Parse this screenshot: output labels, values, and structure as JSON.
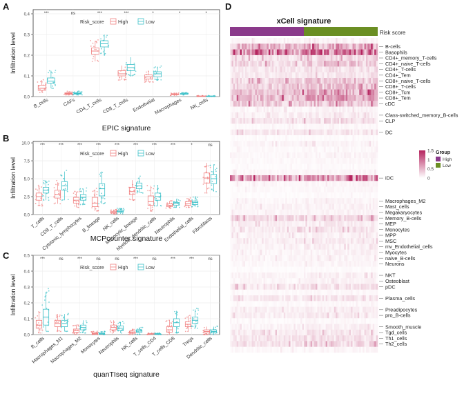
{
  "panels": {
    "a": "A",
    "b": "B",
    "c": "C",
    "d": "D"
  },
  "chart_data": [
    {
      "id": "epic",
      "type": "box",
      "title": "EPIC signature",
      "ylabel": "Infiltration level",
      "legend_title": "Risk_score",
      "legend": [
        "High",
        "Low"
      ],
      "series_colors": {
        "High": "#F08080",
        "Low": "#3CC0C8"
      },
      "ylim": [
        0,
        0.42
      ],
      "yticks": [
        "0.0",
        "0.1",
        "0.2",
        "0.3",
        "0.4"
      ],
      "ytick_values": [
        0,
        0.1,
        0.2,
        0.3,
        0.4
      ],
      "categories": [
        "B_cells",
        "CAFs",
        "CD4_T_cells",
        "CD8_T_cells",
        "Endothelial",
        "Macrophages",
        "NK_cells"
      ],
      "significance": [
        "***",
        "ns",
        "***",
        "***",
        "*",
        "*",
        "*"
      ],
      "boxes": {
        "High": [
          [
            0.02,
            0.03,
            0.04,
            0.055,
            0.08
          ],
          [
            0.008,
            0.012,
            0.015,
            0.018,
            0.025
          ],
          [
            0.17,
            0.205,
            0.22,
            0.235,
            0.27
          ],
          [
            0.08,
            0.1,
            0.11,
            0.125,
            0.15
          ],
          [
            0.07,
            0.085,
            0.095,
            0.105,
            0.125
          ],
          [
            0.006,
            0.009,
            0.011,
            0.013,
            0.018
          ],
          [
            0.0,
            0.001,
            0.002,
            0.003,
            0.005
          ]
        ],
        "Low": [
          [
            0.04,
            0.065,
            0.075,
            0.09,
            0.125
          ],
          [
            0.008,
            0.012,
            0.015,
            0.018,
            0.025
          ],
          [
            0.2,
            0.24,
            0.255,
            0.27,
            0.3
          ],
          [
            0.1,
            0.125,
            0.14,
            0.155,
            0.19
          ],
          [
            0.08,
            0.095,
            0.11,
            0.12,
            0.145
          ],
          [
            0.008,
            0.011,
            0.013,
            0.015,
            0.02
          ],
          [
            0.0,
            0.001,
            0.002,
            0.003,
            0.005
          ]
        ]
      }
    },
    {
      "id": "mcp",
      "type": "box",
      "title": "MCPcounter signature",
      "ylabel": "Infiltration level",
      "legend_title": "Risk_score",
      "legend": [
        "High",
        "Low"
      ],
      "series_colors": {
        "High": "#F08080",
        "Low": "#3CC0C8"
      },
      "ylim": [
        0,
        10.2
      ],
      "yticks": [
        "0.0",
        "2.5",
        "5.0",
        "7.5",
        "10.0"
      ],
      "ytick_values": [
        0,
        2.5,
        5,
        7.5,
        10
      ],
      "categories": [
        "T_cells",
        "CD8_T_cells",
        "Cytotoxic_lymphocytes",
        "B_lineage",
        "NK_cells",
        "Monocytic_lineage",
        "Myeloid_dendritic_cells",
        "Neutrophils",
        "Endothelial_cells",
        "Fibroblasts"
      ],
      "significance": [
        "***",
        "***",
        "***",
        "***",
        "***",
        "***",
        "***",
        "***",
        "*",
        "ns"
      ],
      "boxes": {
        "High": [
          [
            1.2,
            2.0,
            2.5,
            3.0,
            4.0
          ],
          [
            1.5,
            2.3,
            2.8,
            3.4,
            4.5
          ],
          [
            1.0,
            1.6,
            2.0,
            2.4,
            3.2
          ],
          [
            0.5,
            1.1,
            1.6,
            2.4,
            3.5
          ],
          [
            0.0,
            0.2,
            0.3,
            0.45,
            0.7
          ],
          [
            2.0,
            2.8,
            3.2,
            3.8,
            4.8
          ],
          [
            0.5,
            1.3,
            1.8,
            2.6,
            4.0
          ],
          [
            0.9,
            1.1,
            1.3,
            1.5,
            1.9
          ],
          [
            1.0,
            1.3,
            1.5,
            1.8,
            2.3
          ],
          [
            3.0,
            4.4,
            5.1,
            5.8,
            7.2
          ]
        ],
        "Low": [
          [
            2.0,
            3.0,
            3.4,
            3.8,
            4.8
          ],
          [
            2.0,
            3.4,
            4.0,
            4.6,
            6.0
          ],
          [
            1.4,
            2.0,
            2.4,
            2.8,
            3.6
          ],
          [
            1.5,
            2.6,
            3.6,
            4.3,
            6.0
          ],
          [
            0.1,
            0.3,
            0.45,
            0.6,
            0.9
          ],
          [
            3.0,
            3.6,
            4.0,
            4.4,
            5.2
          ],
          [
            1.2,
            2.0,
            2.5,
            3.0,
            4.0
          ],
          [
            1.0,
            1.3,
            1.5,
            1.7,
            2.1
          ],
          [
            1.1,
            1.4,
            1.7,
            1.9,
            2.5
          ],
          [
            3.2,
            4.3,
            5.0,
            5.6,
            7.0
          ]
        ]
      }
    },
    {
      "id": "quantiseq",
      "type": "box",
      "title": "quanTIseq signature",
      "ylabel": "Infiltration level",
      "legend_title": "Risk_score",
      "legend": [
        "High",
        "Low"
      ],
      "series_colors": {
        "High": "#F08080",
        "Low": "#3CC0C8"
      },
      "ylim": [
        0,
        0.5
      ],
      "yticks": [
        "0.0",
        "0.1",
        "0.2",
        "0.3",
        "0.4",
        "0.5"
      ],
      "ytick_values": [
        0,
        0.1,
        0.2,
        0.3,
        0.4,
        0.5
      ],
      "categories": [
        "B_cells",
        "Macrophages_M1",
        "Macrophages_M2",
        "Monocytes",
        "Neutrophils",
        "NK_cells",
        "T_cells_CD4",
        "T_cells_CD8",
        "Tregs",
        "Dendritic_cells"
      ],
      "significance": [
        "***",
        "ns",
        "***",
        "ns",
        "ns",
        "***",
        "ns",
        "***",
        "***",
        "ns"
      ],
      "boxes": {
        "High": [
          [
            0.01,
            0.04,
            0.06,
            0.09,
            0.14
          ],
          [
            0.02,
            0.05,
            0.07,
            0.09,
            0.13
          ],
          [
            0.0,
            0.015,
            0.025,
            0.035,
            0.06
          ],
          [
            0.0,
            0.003,
            0.006,
            0.01,
            0.02
          ],
          [
            0.01,
            0.03,
            0.045,
            0.06,
            0.09
          ],
          [
            0.0,
            0.008,
            0.015,
            0.022,
            0.035
          ],
          [
            0.0,
            0.002,
            0.004,
            0.006,
            0.01
          ],
          [
            0.0,
            0.015,
            0.03,
            0.05,
            0.09
          ],
          [
            0.02,
            0.05,
            0.065,
            0.08,
            0.12
          ],
          [
            0.0,
            0.01,
            0.02,
            0.03,
            0.05
          ]
        ],
        "Low": [
          [
            0.02,
            0.06,
            0.11,
            0.16,
            0.27
          ],
          [
            0.02,
            0.05,
            0.07,
            0.09,
            0.13
          ],
          [
            0.01,
            0.03,
            0.045,
            0.06,
            0.09
          ],
          [
            0.0,
            0.003,
            0.006,
            0.01,
            0.02
          ],
          [
            0.01,
            0.025,
            0.04,
            0.055,
            0.08
          ],
          [
            0.0,
            0.014,
            0.022,
            0.03,
            0.045
          ],
          [
            0.0,
            0.002,
            0.004,
            0.006,
            0.01
          ],
          [
            0.01,
            0.05,
            0.075,
            0.1,
            0.15
          ],
          [
            0.04,
            0.07,
            0.09,
            0.11,
            0.16
          ],
          [
            0.0,
            0.01,
            0.02,
            0.03,
            0.05
          ]
        ]
      }
    },
    {
      "id": "xcell",
      "type": "heatmap",
      "title": "xCell signature",
      "annotation_label": "Risk score",
      "legend_title": "Group",
      "legend": [
        "High",
        "Low"
      ],
      "group_colors": {
        "High": "#8B3A8B",
        "Low": "#6B8E23"
      },
      "group_split": 0.5,
      "color_scale": {
        "min": 0,
        "max": 1.5,
        "low_color": "#FFFFFF",
        "high_color": "#B5245F"
      },
      "colorbar_ticks": [
        "1.5",
        "1",
        "0.5",
        "0"
      ],
      "colorbar_tick_values": [
        1.5,
        1,
        0.5,
        0
      ],
      "rows": [
        {
          "name": "",
          "level": 0.05
        },
        {
          "name": "B-cells",
          "level": 0.35
        },
        {
          "name": "Basophils",
          "level": 0.5
        },
        {
          "name": "CD4+_memory_T-cells",
          "level": 0.15
        },
        {
          "name": "CD4+_naive_T-cells",
          "level": 0.2
        },
        {
          "name": "CD4+_T-cells",
          "level": 0.12
        },
        {
          "name": "CD4+_Tem",
          "level": 0.1
        },
        {
          "name": "CD8+_naive_T-cells",
          "level": 0.2
        },
        {
          "name": "CD8+_T-cells",
          "level": 0.22
        },
        {
          "name": "CD8+_Tcm",
          "level": 0.3
        },
        {
          "name": "CD8+_Tem",
          "level": 0.32
        },
        {
          "name": "cDC",
          "level": 0.25
        },
        {
          "name": "",
          "level": 0.05
        },
        {
          "name": "Class-switched_memory_B-cells",
          "level": 0.08
        },
        {
          "name": "CLP",
          "level": 0.12
        },
        {
          "name": "",
          "level": 0.03
        },
        {
          "name": "DC",
          "level": 0.1
        },
        {
          "name": "",
          "level": 0.02
        },
        {
          "name": "",
          "level": 0.05
        },
        {
          "name": "",
          "level": 0.03
        },
        {
          "name": "",
          "level": 0.04
        },
        {
          "name": "",
          "level": 0.03
        },
        {
          "name": "",
          "level": 0.02
        },
        {
          "name": "",
          "level": 0.04
        },
        {
          "name": "iDC",
          "level": 0.45
        },
        {
          "name": "",
          "level": 0.04
        },
        {
          "name": "",
          "level": 0.03
        },
        {
          "name": "",
          "level": 0.02
        },
        {
          "name": "Macrophages_M2",
          "level": 0.05
        },
        {
          "name": "Mast_cells",
          "level": 0.06
        },
        {
          "name": "Megakaryocytes",
          "level": 0.05
        },
        {
          "name": "Memory_B-cells",
          "level": 0.18
        },
        {
          "name": "MEP",
          "level": 0.08
        },
        {
          "name": "Monocytes",
          "level": 0.1
        },
        {
          "name": "MPP",
          "level": 0.06
        },
        {
          "name": "MSC",
          "level": 0.08
        },
        {
          "name": "mv_Endothelial_cells",
          "level": 0.06
        },
        {
          "name": "Myocytes",
          "level": 0.05
        },
        {
          "name": "naive_B-cells",
          "level": 0.05
        },
        {
          "name": "Neurons",
          "level": 0.04
        },
        {
          "name": "",
          "level": 0.02
        },
        {
          "name": "NKT",
          "level": 0.06
        },
        {
          "name": "Osteoblast",
          "level": 0.05
        },
        {
          "name": "pDC",
          "level": 0.12
        },
        {
          "name": "",
          "level": 0.03
        },
        {
          "name": "Plasma_cells",
          "level": 0.1
        },
        {
          "name": "",
          "level": 0.03
        },
        {
          "name": "Preadipocytes",
          "level": 0.07
        },
        {
          "name": "pro_B-cells",
          "level": 0.08
        },
        {
          "name": "",
          "level": 0.03
        },
        {
          "name": "Smooth_muscle",
          "level": 0.06
        },
        {
          "name": "Tgd_cells",
          "level": 0.1
        },
        {
          "name": "Th1_cells",
          "level": 0.12
        },
        {
          "name": "Th2_cells",
          "level": 0.15
        },
        {
          "name": "",
          "level": 0.04
        }
      ]
    }
  ]
}
